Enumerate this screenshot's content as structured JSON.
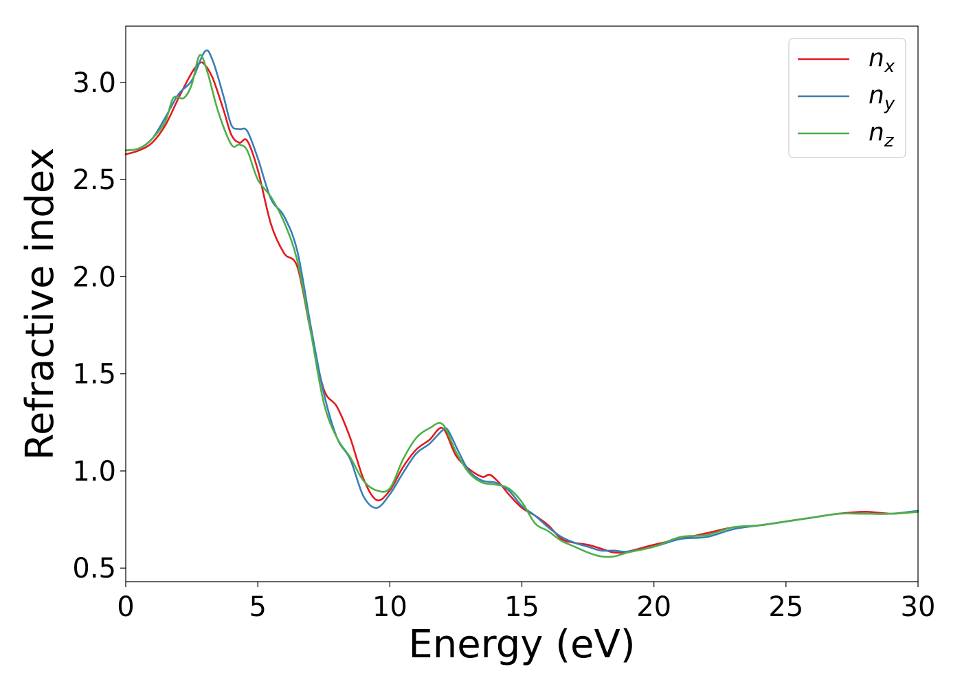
{
  "chart_data": {
    "type": "line",
    "title": "",
    "xlabel": "Energy (eV)",
    "ylabel": "Refractive index",
    "xlim": [
      0,
      30
    ],
    "ylim": [
      0.43,
      3.29
    ],
    "xticks": [
      0,
      5,
      10,
      15,
      20,
      25,
      30
    ],
    "yticks": [
      0.5,
      1.0,
      1.5,
      2.0,
      2.5,
      3.0
    ],
    "xtick_labels": [
      "0",
      "5",
      "10",
      "15",
      "20",
      "25",
      "30"
    ],
    "ytick_labels": [
      "0.5",
      "1.0",
      "1.5",
      "2.0",
      "2.5",
      "3.0"
    ],
    "grid": false,
    "legend_position": "top-right",
    "series": [
      {
        "name": "n_x",
        "label_base": "n",
        "label_sub": "x",
        "color": "#e41a1c",
        "points": [
          [
            0,
            2.63
          ],
          [
            0.5,
            2.65
          ],
          [
            1,
            2.69
          ],
          [
            1.5,
            2.78
          ],
          [
            2,
            2.92
          ],
          [
            2.5,
            3.05
          ],
          [
            2.8,
            3.1
          ],
          [
            3.0,
            3.09
          ],
          [
            3.3,
            3.02
          ],
          [
            3.7,
            2.86
          ],
          [
            4.0,
            2.73
          ],
          [
            4.3,
            2.69
          ],
          [
            4.6,
            2.7
          ],
          [
            5.0,
            2.55
          ],
          [
            5.5,
            2.27
          ],
          [
            6.0,
            2.12
          ],
          [
            6.5,
            2.05
          ],
          [
            7.0,
            1.72
          ],
          [
            7.5,
            1.42
          ],
          [
            8.0,
            1.33
          ],
          [
            8.5,
            1.17
          ],
          [
            9.0,
            0.96
          ],
          [
            9.5,
            0.85
          ],
          [
            10.0,
            0.9
          ],
          [
            10.5,
            1.02
          ],
          [
            11.0,
            1.11
          ],
          [
            11.5,
            1.16
          ],
          [
            12.0,
            1.22
          ],
          [
            12.5,
            1.08
          ],
          [
            13.0,
            1.01
          ],
          [
            13.5,
            0.97
          ],
          [
            13.8,
            0.98
          ],
          [
            14.2,
            0.93
          ],
          [
            14.5,
            0.88
          ],
          [
            15.0,
            0.81
          ],
          [
            15.5,
            0.77
          ],
          [
            16.0,
            0.72
          ],
          [
            16.5,
            0.65
          ],
          [
            17.0,
            0.63
          ],
          [
            17.5,
            0.62
          ],
          [
            18.0,
            0.6
          ],
          [
            18.5,
            0.58
          ],
          [
            19.0,
            0.585
          ],
          [
            20.0,
            0.62
          ],
          [
            21.0,
            0.65
          ],
          [
            22.0,
            0.68
          ],
          [
            23.0,
            0.71
          ],
          [
            24.0,
            0.72
          ],
          [
            25.0,
            0.74
          ],
          [
            26.0,
            0.76
          ],
          [
            27.0,
            0.78
          ],
          [
            28.0,
            0.79
          ],
          [
            29.0,
            0.78
          ],
          [
            30.0,
            0.79
          ]
        ]
      },
      {
        "name": "n_y",
        "label_base": "n",
        "label_sub": "y",
        "color": "#377eb8",
        "points": [
          [
            0,
            2.65
          ],
          [
            0.5,
            2.66
          ],
          [
            1,
            2.71
          ],
          [
            1.5,
            2.82
          ],
          [
            2,
            2.94
          ],
          [
            2.5,
            3.01
          ],
          [
            3.0,
            3.16
          ],
          [
            3.3,
            3.11
          ],
          [
            3.7,
            2.93
          ],
          [
            4.0,
            2.78
          ],
          [
            4.3,
            2.76
          ],
          [
            4.6,
            2.75
          ],
          [
            5.0,
            2.61
          ],
          [
            5.5,
            2.4
          ],
          [
            6.0,
            2.31
          ],
          [
            6.5,
            2.13
          ],
          [
            7.0,
            1.75
          ],
          [
            7.5,
            1.4
          ],
          [
            8.0,
            1.17
          ],
          [
            8.5,
            1.06
          ],
          [
            9.0,
            0.87
          ],
          [
            9.5,
            0.81
          ],
          [
            10.0,
            0.88
          ],
          [
            10.5,
            0.99
          ],
          [
            11.0,
            1.09
          ],
          [
            11.5,
            1.14
          ],
          [
            12.0,
            1.21
          ],
          [
            12.2,
            1.21
          ],
          [
            12.6,
            1.1
          ],
          [
            13.0,
            1.0
          ],
          [
            13.5,
            0.95
          ],
          [
            14.0,
            0.94
          ],
          [
            14.5,
            0.9
          ],
          [
            15.0,
            0.82
          ],
          [
            15.5,
            0.77
          ],
          [
            16.0,
            0.71
          ],
          [
            16.5,
            0.66
          ],
          [
            17.0,
            0.63
          ],
          [
            17.5,
            0.61
          ],
          [
            18.0,
            0.59
          ],
          [
            18.5,
            0.59
          ],
          [
            19.0,
            0.585
          ],
          [
            20.0,
            0.61
          ],
          [
            21.0,
            0.65
          ],
          [
            22.0,
            0.66
          ],
          [
            23.0,
            0.7
          ],
          [
            24.0,
            0.72
          ],
          [
            25.0,
            0.74
          ],
          [
            26.0,
            0.76
          ],
          [
            27.0,
            0.78
          ],
          [
            28.0,
            0.78
          ],
          [
            29.0,
            0.78
          ],
          [
            30.0,
            0.795
          ]
        ]
      },
      {
        "name": "n_z",
        "label_base": "n",
        "label_sub": "z",
        "color": "#4daf4a",
        "points": [
          [
            0,
            2.65
          ],
          [
            0.5,
            2.66
          ],
          [
            1,
            2.71
          ],
          [
            1.5,
            2.8
          ],
          [
            1.8,
            2.92
          ],
          [
            2.2,
            2.92
          ],
          [
            2.5,
            2.99
          ],
          [
            2.8,
            3.14
          ],
          [
            3.1,
            3.05
          ],
          [
            3.5,
            2.85
          ],
          [
            4.0,
            2.68
          ],
          [
            4.3,
            2.68
          ],
          [
            4.6,
            2.65
          ],
          [
            5.0,
            2.5
          ],
          [
            5.5,
            2.41
          ],
          [
            6.0,
            2.28
          ],
          [
            6.5,
            2.08
          ],
          [
            7.0,
            1.72
          ],
          [
            7.5,
            1.35
          ],
          [
            8.0,
            1.17
          ],
          [
            8.5,
            1.07
          ],
          [
            9.0,
            0.95
          ],
          [
            9.5,
            0.9
          ],
          [
            10.0,
            0.91
          ],
          [
            10.5,
            1.06
          ],
          [
            11.0,
            1.17
          ],
          [
            11.5,
            1.22
          ],
          [
            12.0,
            1.24
          ],
          [
            12.5,
            1.1
          ],
          [
            13.0,
            0.99
          ],
          [
            13.5,
            0.94
          ],
          [
            14.0,
            0.93
          ],
          [
            14.5,
            0.91
          ],
          [
            15.0,
            0.84
          ],
          [
            15.5,
            0.73
          ],
          [
            16.0,
            0.69
          ],
          [
            16.5,
            0.64
          ],
          [
            17.0,
            0.61
          ],
          [
            17.5,
            0.58
          ],
          [
            18.0,
            0.56
          ],
          [
            18.5,
            0.56
          ],
          [
            19.0,
            0.58
          ],
          [
            20.0,
            0.61
          ],
          [
            21.0,
            0.66
          ],
          [
            22.0,
            0.67
          ],
          [
            23.0,
            0.71
          ],
          [
            24.0,
            0.72
          ],
          [
            25.0,
            0.74
          ],
          [
            26.0,
            0.76
          ],
          [
            27.0,
            0.78
          ],
          [
            28.0,
            0.78
          ],
          [
            29.0,
            0.78
          ],
          [
            30.0,
            0.79
          ]
        ]
      }
    ]
  }
}
